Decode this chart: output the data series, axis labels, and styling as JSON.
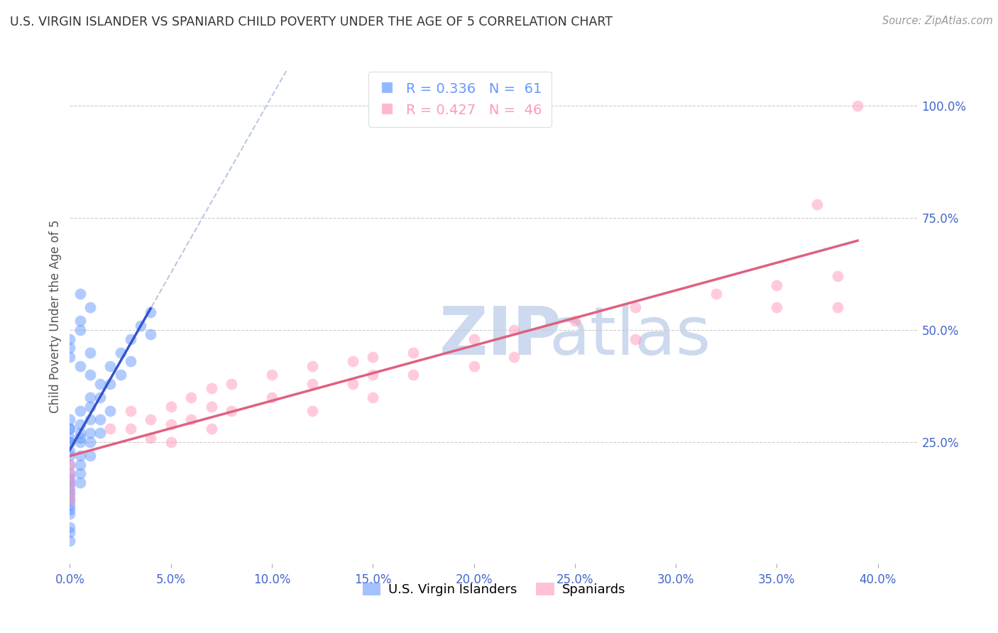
{
  "title": "U.S. VIRGIN ISLANDER VS SPANIARD CHILD POVERTY UNDER THE AGE OF 5 CORRELATION CHART",
  "source": "Source: ZipAtlas.com",
  "ylabel": "Child Poverty Under the Age of 5",
  "xlabel_ticks": [
    0.0,
    0.05,
    0.1,
    0.15,
    0.2,
    0.25,
    0.3,
    0.35,
    0.4
  ],
  "xlim": [
    0.0,
    0.42
  ],
  "ylim": [
    -0.02,
    1.08
  ],
  "vi_color": "#6699ff",
  "sp_color": "#ff99bb",
  "vi_R": 0.336,
  "vi_N": 61,
  "sp_R": 0.427,
  "sp_N": 46,
  "legend_label_vi": "U.S. Virgin Islanders",
  "legend_label_sp": "Spaniards",
  "vi_x": [
    0.0,
    0.0,
    0.0,
    0.0,
    0.0,
    0.0,
    0.0,
    0.0,
    0.0,
    0.0,
    0.0,
    0.0,
    0.0,
    0.0,
    0.0,
    0.0,
    0.0,
    0.0,
    0.0,
    0.0,
    0.005,
    0.005,
    0.005,
    0.005,
    0.005,
    0.005,
    0.005,
    0.005,
    0.005,
    0.01,
    0.01,
    0.01,
    0.01,
    0.01,
    0.01,
    0.015,
    0.015,
    0.015,
    0.015,
    0.02,
    0.02,
    0.02,
    0.025,
    0.025,
    0.03,
    0.03,
    0.035,
    0.04,
    0.04,
    0.005,
    0.01,
    0.0,
    0.0,
    0.0,
    0.01,
    0.005,
    0.0,
    0.005,
    0.01,
    0.005,
    0.0
  ],
  "vi_y": [
    0.28,
    0.3,
    0.28,
    0.26,
    0.25,
    0.25,
    0.23,
    0.22,
    0.2,
    0.18,
    0.17,
    0.16,
    0.15,
    0.14,
    0.13,
    0.12,
    0.11,
    0.1,
    0.09,
    0.05,
    0.32,
    0.29,
    0.27,
    0.26,
    0.25,
    0.22,
    0.2,
    0.18,
    0.16,
    0.35,
    0.33,
    0.3,
    0.27,
    0.25,
    0.22,
    0.38,
    0.35,
    0.3,
    0.27,
    0.42,
    0.38,
    0.32,
    0.45,
    0.4,
    0.48,
    0.43,
    0.51,
    0.54,
    0.49,
    0.5,
    0.45,
    0.48,
    0.46,
    0.44,
    0.4,
    0.42,
    0.03,
    0.52,
    0.55,
    0.58,
    0.06
  ],
  "sp_x": [
    0.0,
    0.0,
    0.0,
    0.0,
    0.0,
    0.02,
    0.03,
    0.03,
    0.04,
    0.04,
    0.05,
    0.05,
    0.05,
    0.06,
    0.06,
    0.07,
    0.07,
    0.07,
    0.08,
    0.08,
    0.1,
    0.1,
    0.12,
    0.12,
    0.12,
    0.14,
    0.14,
    0.15,
    0.15,
    0.15,
    0.17,
    0.17,
    0.2,
    0.2,
    0.22,
    0.22,
    0.25,
    0.28,
    0.28,
    0.32,
    0.35,
    0.35,
    0.38,
    0.38,
    0.37,
    0.39
  ],
  "sp_y": [
    0.2,
    0.18,
    0.16,
    0.14,
    0.12,
    0.28,
    0.32,
    0.28,
    0.3,
    0.26,
    0.33,
    0.29,
    0.25,
    0.35,
    0.3,
    0.37,
    0.33,
    0.28,
    0.38,
    0.32,
    0.4,
    0.35,
    0.42,
    0.38,
    0.32,
    0.43,
    0.38,
    0.44,
    0.4,
    0.35,
    0.45,
    0.4,
    0.48,
    0.42,
    0.5,
    0.44,
    0.52,
    0.55,
    0.48,
    0.58,
    0.6,
    0.55,
    0.62,
    0.55,
    0.78,
    1.0
  ],
  "background_color": "#ffffff",
  "grid_color": "#cccccc",
  "tick_label_color": "#4466cc",
  "title_color": "#333333",
  "ylabel_color": "#555555",
  "watermark_color": "#ccd9ee"
}
